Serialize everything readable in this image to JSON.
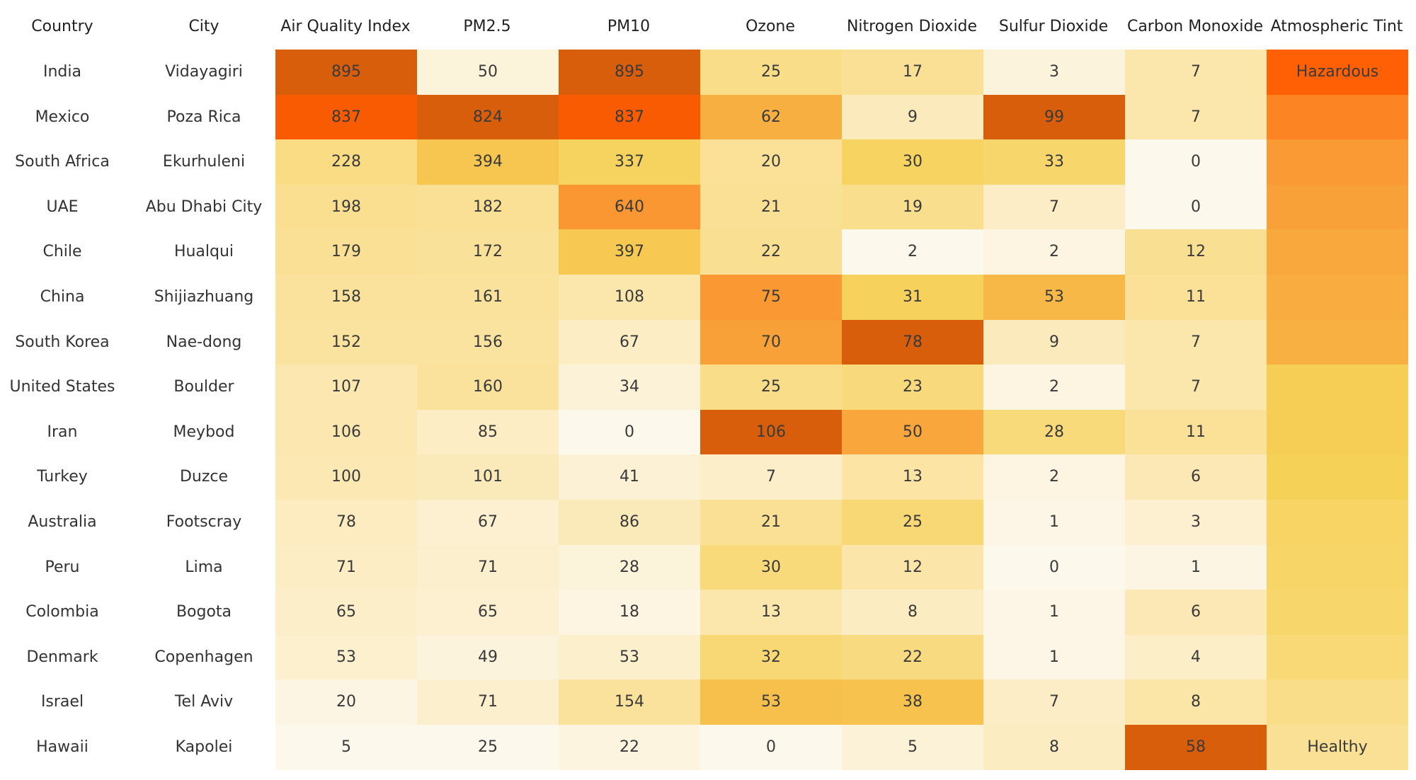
{
  "chart_data": {
    "type": "heatmap",
    "headers": [
      "Country",
      "City",
      "Air Quality Index",
      "PM2.5",
      "PM10",
      "Ozone",
      "Nitrogen Dioxide",
      "Sulfur Dioxide",
      "Carbon Monoxide",
      "Atmospheric Tint"
    ],
    "metrics": [
      "Air Quality Index",
      "PM2.5",
      "PM10",
      "Ozone",
      "Nitrogen Dioxide",
      "Sulfur Dioxide",
      "Carbon Monoxide"
    ],
    "rows": [
      {
        "country": "India",
        "city": "Vidayagiri",
        "values": [
          895,
          50,
          895,
          25,
          17,
          3,
          7
        ],
        "tint_label": "Hazardous",
        "tint": 0.9
      },
      {
        "country": "Mexico",
        "city": "Poza Rica",
        "values": [
          837,
          824,
          837,
          62,
          9,
          99,
          7
        ],
        "tint_label": "",
        "tint": 0.78
      },
      {
        "country": "South Africa",
        "city": "Ekurhuleni",
        "values": [
          228,
          394,
          337,
          20,
          30,
          33,
          0
        ],
        "tint_label": "",
        "tint": 0.7
      },
      {
        "country": "UAE",
        "city": "Abu Dhabi City",
        "values": [
          198,
          182,
          640,
          21,
          19,
          7,
          0
        ],
        "tint_label": "",
        "tint": 0.66
      },
      {
        "country": "Chile",
        "city": "Hualqui",
        "values": [
          179,
          172,
          397,
          22,
          2,
          2,
          12
        ],
        "tint_label": "",
        "tint": 0.62
      },
      {
        "country": "China",
        "city": "Shijiazhuang",
        "values": [
          158,
          161,
          108,
          75,
          31,
          53,
          11
        ],
        "tint_label": "",
        "tint": 0.6
      },
      {
        "country": "South Korea",
        "city": "Nae-dong",
        "values": [
          152,
          156,
          67,
          70,
          78,
          9,
          7
        ],
        "tint_label": "",
        "tint": 0.58
      },
      {
        "country": "United States",
        "city": "Boulder",
        "values": [
          107,
          160,
          34,
          25,
          23,
          2,
          7
        ],
        "tint_label": "",
        "tint": 0.42
      },
      {
        "country": "Iran",
        "city": "Meybod",
        "values": [
          106,
          85,
          0,
          106,
          50,
          28,
          11
        ],
        "tint_label": "",
        "tint": 0.42
      },
      {
        "country": "Turkey",
        "city": "Duzce",
        "values": [
          100,
          101,
          41,
          7,
          13,
          2,
          6
        ],
        "tint_label": "",
        "tint": 0.4
      },
      {
        "country": "Australia",
        "city": "Footscray",
        "values": [
          78,
          67,
          86,
          21,
          25,
          1,
          3
        ],
        "tint_label": "",
        "tint": 0.36
      },
      {
        "country": "Peru",
        "city": "Lima",
        "values": [
          71,
          71,
          28,
          30,
          12,
          0,
          1
        ],
        "tint_label": "",
        "tint": 0.35
      },
      {
        "country": "Colombia",
        "city": "Bogota",
        "values": [
          65,
          65,
          18,
          13,
          8,
          1,
          6
        ],
        "tint_label": "",
        "tint": 0.33
      },
      {
        "country": "Denmark",
        "city": "Copenhagen",
        "values": [
          53,
          49,
          53,
          32,
          22,
          1,
          4
        ],
        "tint_label": "",
        "tint": 0.3
      },
      {
        "country": "Israel",
        "city": "Tel Aviv",
        "values": [
          20,
          71,
          154,
          53,
          38,
          7,
          8
        ],
        "tint_label": "",
        "tint": 0.24
      },
      {
        "country": "Hawaii",
        "city": "Kapolei",
        "values": [
          5,
          25,
          22,
          0,
          5,
          8,
          58
        ],
        "tint_label": "Healthy",
        "tint": 0.2
      }
    ],
    "color_scale": {
      "low": "#fdf8ec",
      "mid_low": "#fbe6ac",
      "mid": "#f6d157",
      "mid_high": "#fa9632",
      "high": "#ff5a00",
      "hot": "#d95e0b"
    }
  }
}
